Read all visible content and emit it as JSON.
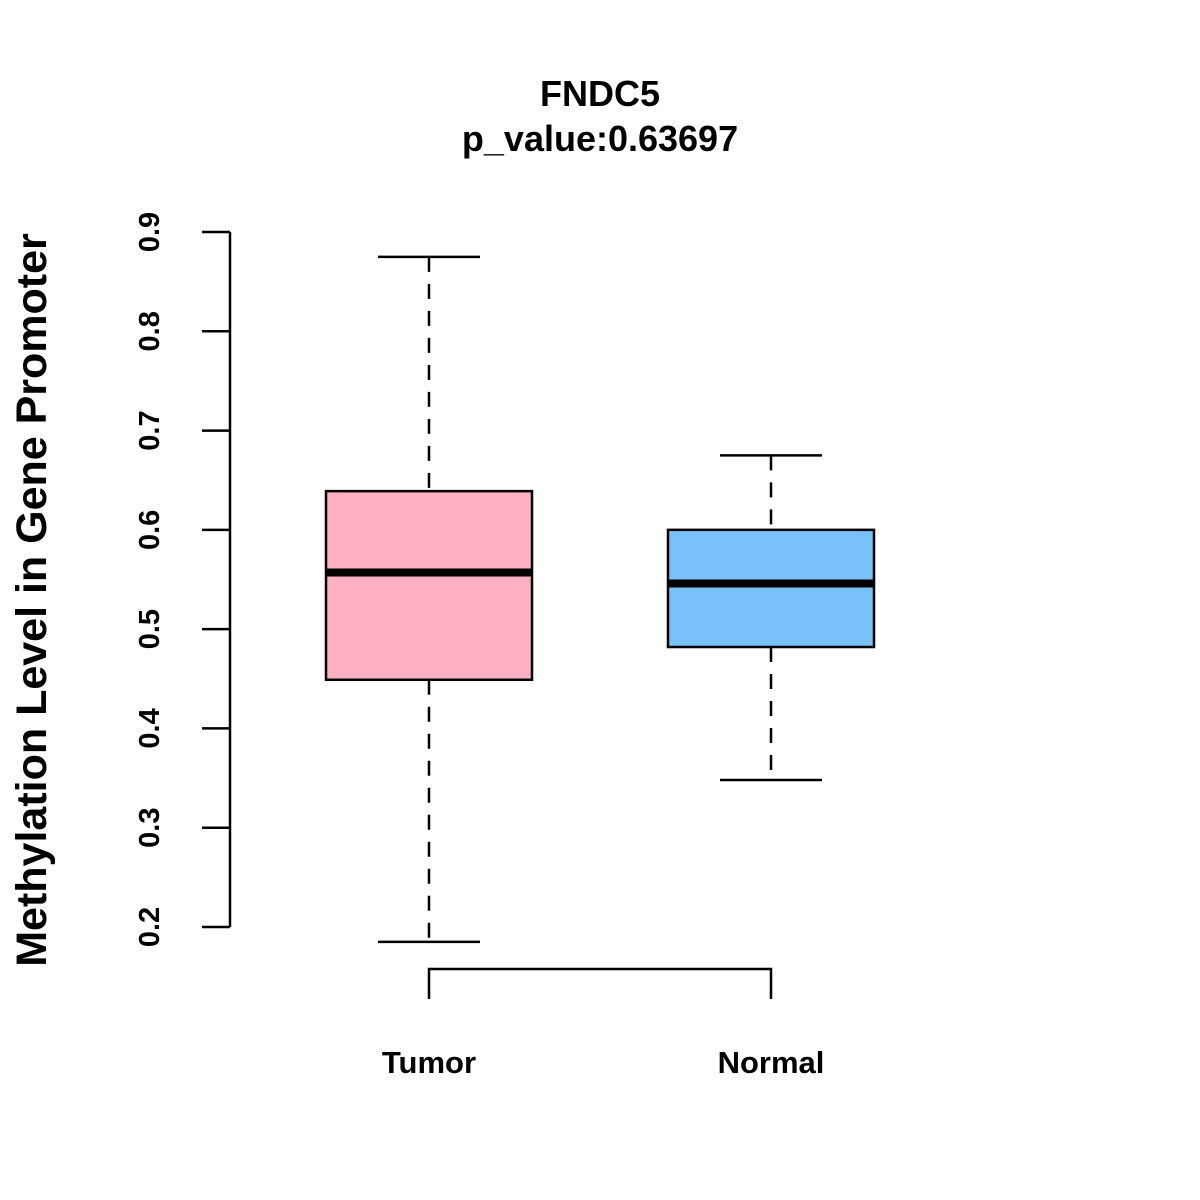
{
  "chart_data": {
    "type": "box",
    "title": "FNDC5",
    "subtitle": "p_value:0.63697",
    "xlabel": "",
    "ylabel": "Methylation Level in Gene Promoter",
    "y_ticks": [
      "0.2",
      "0.3",
      "0.4",
      "0.5",
      "0.6",
      "0.7",
      "0.8",
      "0.9"
    ],
    "ylim": [
      0.2,
      0.9
    ],
    "grid": false,
    "categories": [
      "Tumor",
      "Normal"
    ],
    "series": [
      {
        "name": "Tumor",
        "color": "#FFB0C1",
        "whisker_low": 0.185,
        "q1": 0.449,
        "median": 0.557,
        "q3": 0.639,
        "whisker_high": 0.875
      },
      {
        "name": "Normal",
        "color": "#79C2F9",
        "whisker_low": 0.348,
        "q1": 0.482,
        "median": 0.546,
        "q3": 0.6,
        "whisker_high": 0.675
      }
    ]
  }
}
